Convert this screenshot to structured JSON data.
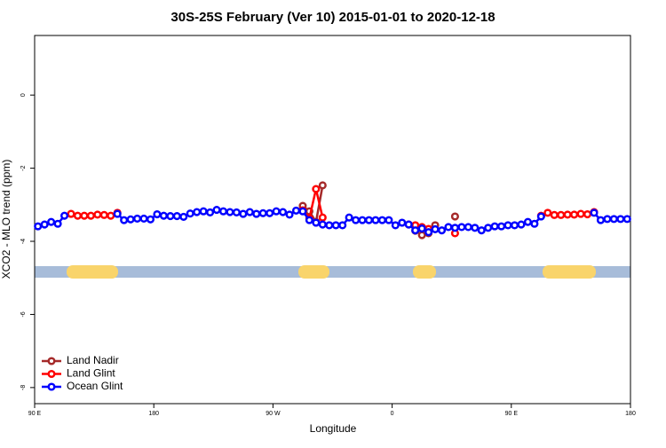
{
  "chart_data": {
    "type": "line",
    "title": "30S-25S February (Ver 10)   2015-01-01 to 2020-12-18",
    "xlabel": "Longitude",
    "ylabel": "XCO2 - MLO trend (ppm)",
    "xlim": [
      90,
      540
    ],
    "ylim": [
      -8.44,
      1.63
    ],
    "xticks": [
      {
        "value": 90,
        "label": "90 E"
      },
      180,
      {
        "value": 270,
        "label": "90 W"
      },
      {
        "value": 360,
        "label": "0"
      },
      {
        "value": 450,
        "label": "90 E"
      },
      {
        "value": 540,
        "label": "180"
      }
    ],
    "yticks": [
      0,
      -2,
      -4,
      -6,
      -8
    ],
    "legend": "bottom-left",
    "x": [
      92.5,
      97.5,
      102.5,
      107.5,
      112.5,
      117.5,
      122.5,
      127.5,
      132.5,
      137.5,
      142.5,
      147.5,
      152.5,
      157.5,
      162.5,
      167.5,
      172.5,
      177.5,
      182.5,
      187.5,
      192.5,
      197.5,
      202.5,
      207.5,
      212.5,
      217.5,
      222.5,
      227.5,
      232.5,
      237.5,
      242.5,
      247.5,
      252.5,
      257.5,
      262.5,
      267.5,
      272.5,
      277.5,
      282.5,
      287.5,
      292.5,
      297.5,
      302.5,
      307.5,
      312.5,
      317.5,
      322.5,
      327.5,
      332.5,
      337.5,
      342.5,
      347.5,
      352.5,
      357.5,
      362.5,
      367.5,
      372.5,
      377.5,
      382.5,
      387.5,
      392.5,
      397.5,
      402.5,
      407.5,
      412.5,
      417.5,
      422.5,
      427.5,
      432.5,
      437.5,
      442.5,
      447.5,
      452.5,
      457.5,
      462.5,
      467.5,
      472.5,
      477.5,
      482.5,
      487.5,
      492.5,
      497.5,
      502.5,
      507.5,
      512.5,
      517.5,
      522.5,
      527.5,
      532.5,
      537.5
    ],
    "series": [
      {
        "name": "Land Nadir",
        "color": "#a52a2a",
        "values": [
          null,
          null,
          null,
          null,
          null,
          null,
          null,
          null,
          null,
          null,
          null,
          null,
          null,
          null,
          null,
          null,
          null,
          null,
          null,
          null,
          null,
          null,
          null,
          null,
          null,
          null,
          null,
          null,
          null,
          null,
          null,
          null,
          null,
          null,
          null,
          null,
          null,
          null,
          null,
          null,
          -3.03,
          -3.18,
          -3.47,
          -2.47,
          null,
          null,
          null,
          null,
          null,
          null,
          null,
          null,
          null,
          null,
          null,
          null,
          null,
          -3.71,
          -3.83,
          -3.78,
          -3.56,
          null,
          null,
          -3.32,
          null,
          null,
          null,
          null,
          null,
          null,
          null,
          null,
          null,
          null,
          null,
          null,
          null,
          null,
          null,
          null,
          null,
          null,
          null,
          null,
          null,
          null,
          null,
          null,
          null,
          null
        ]
      },
      {
        "name": "Land Glint",
        "color": "#ff0000",
        "values": [
          null,
          null,
          null,
          null,
          null,
          -3.25,
          -3.3,
          -3.3,
          -3.3,
          -3.27,
          -3.28,
          -3.3,
          -3.22,
          null,
          null,
          null,
          null,
          null,
          null,
          null,
          null,
          null,
          null,
          null,
          null,
          null,
          null,
          null,
          null,
          null,
          null,
          null,
          null,
          null,
          null,
          null,
          null,
          null,
          null,
          null,
          -3.15,
          -3.37,
          -2.57,
          -3.35,
          null,
          null,
          null,
          null,
          null,
          null,
          null,
          null,
          null,
          null,
          null,
          null,
          -3.54,
          -3.56,
          -3.61,
          -3.66,
          null,
          null,
          null,
          -3.78,
          null,
          null,
          null,
          null,
          null,
          null,
          null,
          null,
          null,
          null,
          null,
          null,
          -3.3,
          -3.22,
          -3.28,
          -3.28,
          -3.27,
          -3.27,
          -3.25,
          -3.26,
          -3.2,
          null,
          null,
          null,
          null,
          null
        ]
      },
      {
        "name": "Ocean Glint",
        "color": "#0000ff",
        "values": [
          -3.59,
          -3.54,
          -3.47,
          -3.52,
          -3.3,
          null,
          null,
          null,
          null,
          null,
          null,
          null,
          -3.25,
          -3.42,
          -3.4,
          -3.38,
          -3.38,
          -3.4,
          -3.26,
          -3.3,
          -3.31,
          -3.31,
          -3.33,
          -3.24,
          -3.2,
          -3.18,
          -3.21,
          -3.14,
          -3.18,
          -3.2,
          -3.21,
          -3.25,
          -3.2,
          -3.25,
          -3.23,
          -3.23,
          -3.18,
          -3.2,
          -3.27,
          -3.16,
          -3.18,
          -3.42,
          -3.49,
          -3.54,
          -3.56,
          -3.56,
          -3.56,
          -3.35,
          -3.42,
          -3.42,
          -3.42,
          -3.42,
          -3.42,
          -3.42,
          -3.56,
          -3.49,
          -3.54,
          -3.7,
          -3.65,
          -3.75,
          -3.67,
          -3.7,
          -3.61,
          -3.63,
          -3.61,
          -3.61,
          -3.63,
          -3.7,
          -3.63,
          -3.59,
          -3.59,
          -3.56,
          -3.56,
          -3.54,
          -3.47,
          -3.52,
          -3.32,
          null,
          null,
          null,
          null,
          null,
          null,
          null,
          -3.22,
          -3.42,
          -3.39,
          -3.39,
          -3.39,
          -3.39
        ]
      }
    ]
  }
}
